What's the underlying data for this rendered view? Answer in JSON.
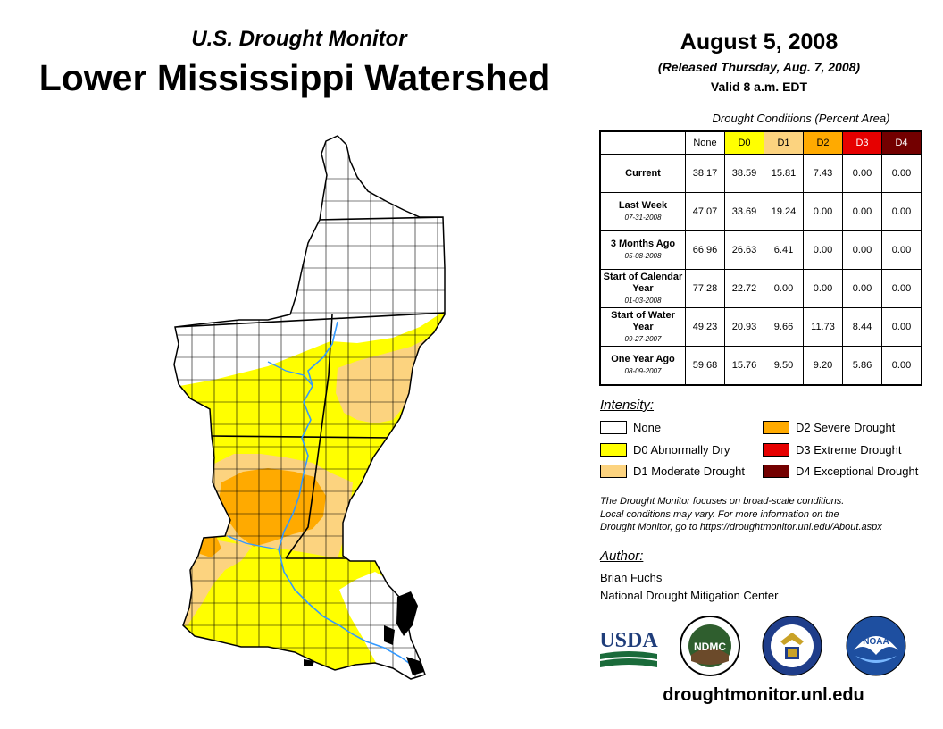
{
  "header": {
    "subtitle": "U.S. Drought Monitor",
    "title": "Lower Mississippi Watershed",
    "date": "August 5, 2008",
    "released": "(Released Thursday, Aug. 7, 2008)",
    "valid": "Valid 8 a.m. EDT"
  },
  "table": {
    "caption": "Drought Conditions (Percent Area)",
    "columns": [
      "None",
      "D0",
      "D1",
      "D2",
      "D3",
      "D4"
    ],
    "column_colors": [
      "#ffffff",
      "#ffff00",
      "#fcd37f",
      "#ffaa00",
      "#e60000",
      "#730000"
    ],
    "rows": [
      {
        "label": "Current",
        "date": "",
        "values": [
          "38.17",
          "38.59",
          "15.81",
          "7.43",
          "0.00",
          "0.00"
        ]
      },
      {
        "label": "Last Week",
        "date": "07-31-2008",
        "values": [
          "47.07",
          "33.69",
          "19.24",
          "0.00",
          "0.00",
          "0.00"
        ]
      },
      {
        "label": "3 Months Ago",
        "date": "05-08-2008",
        "values": [
          "66.96",
          "26.63",
          "6.41",
          "0.00",
          "0.00",
          "0.00"
        ]
      },
      {
        "label": "Start of Calendar Year",
        "date": "01-03-2008",
        "values": [
          "77.28",
          "22.72",
          "0.00",
          "0.00",
          "0.00",
          "0.00"
        ]
      },
      {
        "label": "Start of Water Year",
        "date": "09-27-2007",
        "values": [
          "49.23",
          "20.93",
          "9.66",
          "11.73",
          "8.44",
          "0.00"
        ]
      },
      {
        "label": "One Year Ago",
        "date": "08-09-2007",
        "values": [
          "59.68",
          "15.76",
          "9.50",
          "9.20",
          "5.86",
          "0.00"
        ]
      }
    ]
  },
  "legend": {
    "title": "Intensity:",
    "items": [
      {
        "label": "None",
        "color": "#ffffff"
      },
      {
        "label": "D0 Abnormally Dry",
        "color": "#ffff00"
      },
      {
        "label": "D1 Moderate Drought",
        "color": "#fcd37f"
      },
      {
        "label": "D2 Severe Drought",
        "color": "#ffaa00"
      },
      {
        "label": "D3 Extreme Drought",
        "color": "#e60000"
      },
      {
        "label": "D4 Exceptional Drought",
        "color": "#730000"
      }
    ]
  },
  "note": {
    "line1": "The Drought Monitor focuses on broad-scale conditions.",
    "line2": "Local conditions may vary. For more information on the",
    "line3": "Drought Monitor, go to https://droughtmonitor.unl.edu/About.aspx"
  },
  "author": {
    "heading": "Author:",
    "name": "Brian Fuchs",
    "org": "National Drought Mitigation Center"
  },
  "logos": {
    "usda": "USDA",
    "ndmc": "NDMC",
    "noaa": "NOAA"
  },
  "footer": {
    "url": "droughtmonitor.unl.edu"
  },
  "colors": {
    "river": "#3399ff",
    "border": "#000000"
  }
}
